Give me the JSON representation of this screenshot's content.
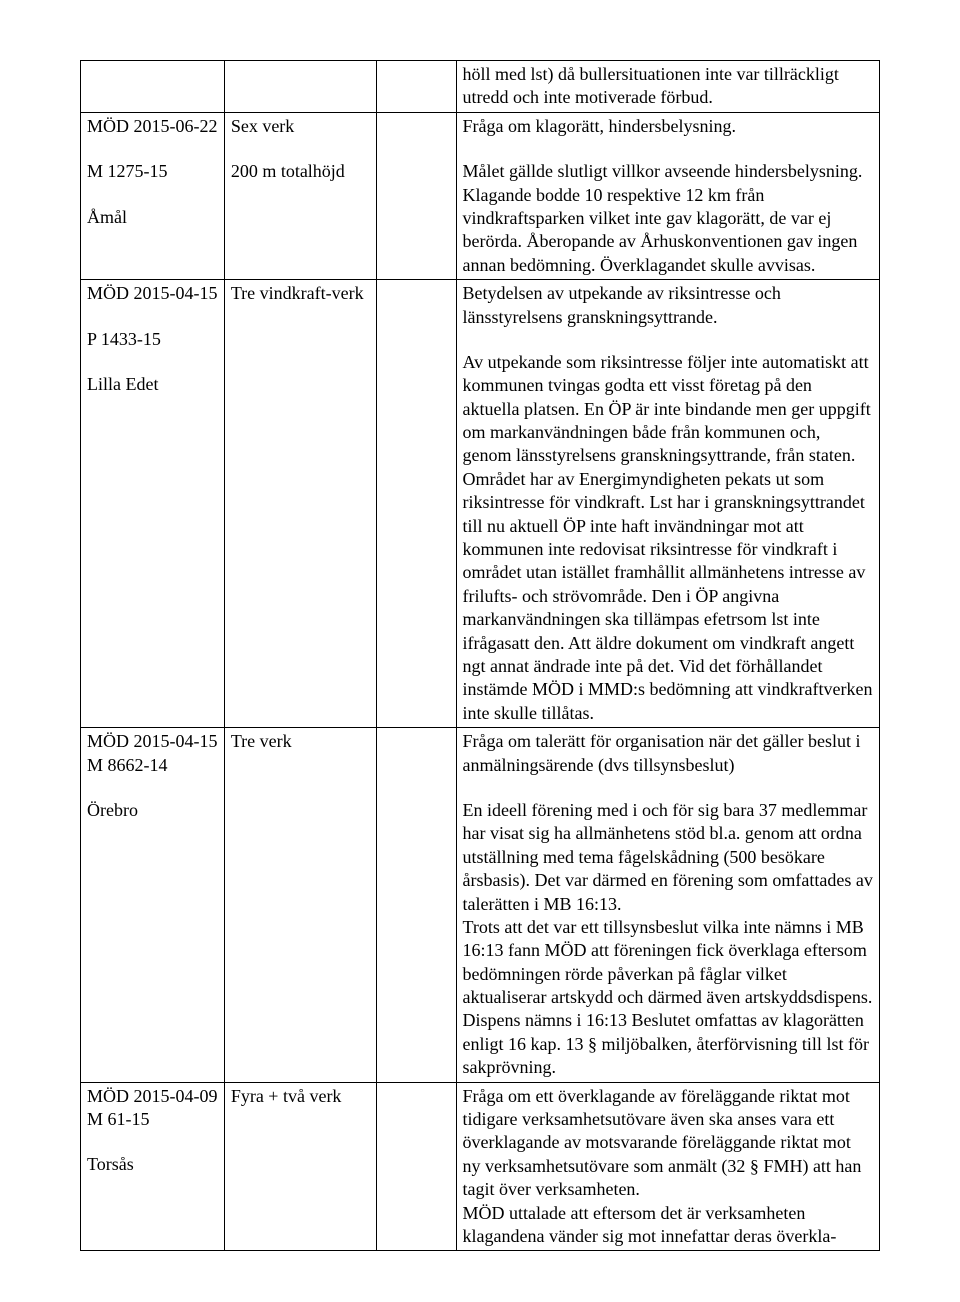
{
  "rows": [
    {
      "c1": [],
      "c2": [],
      "c3": [],
      "c4": [
        "höll med lst) då bullersituationen inte var tillräckligt utredd och inte motiverade förbud."
      ]
    },
    {
      "c1": [
        "MÖD 2015-06-22",
        "",
        "M 1275-15",
        "",
        "Åmål"
      ],
      "c2": [
        "Sex verk",
        "",
        "200 m totalhöjd"
      ],
      "c3": [],
      "c4": [
        "Fråga om klagorätt, hindersbelysning.",
        "",
        "Målet gällde slutligt villkor avseende hindersbelysning. Klagande bodde 10 respektive 12 km från vindkraftsparken vilket inte gav klagorätt, de var ej berörda. Åberopande av Århuskonventionen gav ingen annan bedömning. Överklagandet skulle avvisas."
      ]
    },
    {
      "c1": [
        "MÖD 2015-04-15",
        "",
        "P 1433-15",
        "",
        "Lilla Edet"
      ],
      "c2": [
        "Tre vindkraft-verk"
      ],
      "c3": [],
      "c4": [
        "Betydelsen av utpekande av riksintresse och länsstyrelsens granskningsyttrande.",
        "",
        "Av utpekande som riksintresse följer inte automatiskt att kommunen tvingas godta ett visst företag på den aktuella platsen. En ÖP är inte bindande men ger uppgift om markanvändningen både från kommunen och, genom länsstyrelsens granskningsyttrande, från staten. Området har av Energimyndigheten pekats ut som riksintresse för vindkraft. Lst har i granskningsyttrandet till nu aktuell ÖP inte haft invändningar mot att kommunen inte redovisat riksintresse för vindkraft i området utan istället framhållit allmänhetens intresse av frilufts- och strövområde. Den i ÖP angivna markanvändningen ska tillämpas efetrsom lst inte ifrågasatt den. Att äldre dokument om vindkraft angett ngt annat ändrade inte på det. Vid det förhållandet instämde MÖD i MMD:s bedömning att vindkraftverken inte skulle tillåtas."
      ]
    },
    {
      "c1": [
        "MÖD 2015-04-15",
        "M 8662-14",
        "",
        "Örebro"
      ],
      "c2": [
        "Tre verk"
      ],
      "c3": [],
      "c4": [
        "Fråga om talerätt för organisation när det gäller beslut i anmälningsärende (dvs tillsynsbeslut)",
        "",
        "En ideell förening med  i och för sig bara 37 medlemmar har visat sig ha allmänhetens stöd bl.a. genom att ordna utställning med tema fågelskådning (500 besökare årsbasis). Det var därmed en förening som omfattades av talerätten i MB 16:13.",
        "Trots att det var ett tillsynsbeslut vilka inte nämns i MB 16:13 fann MÖD att föreningen fick överklaga eftersom bedömningen rörde påverkan på fåglar vilket aktualiserar artskydd och därmed även artskyddsdispens. Dispens nämns i 16:13 Beslutet omfattas av klagorätten enligt 16 kap. 13 § miljöbalken, återförvisning till lst för sakprövning."
      ]
    },
    {
      "c1": [
        "MÖD 2015-04-09",
        "M 61-15",
        "",
        "Torsås"
      ],
      "c2": [
        "Fyra + två verk"
      ],
      "c3": [],
      "c4": [
        "Fråga om ett överklagande av föreläggande riktat mot tidigare verksamhetsutövare även ska anses vara ett överklagande av motsvarande föreläggande riktat mot ny verksamhetsutövare som anmält (32 § FMH) att han tagit över verksamheten.",
        "MÖD uttalade att eftersom det är verksamheten klagandena vänder sig mot innefattar deras överkla-"
      ]
    }
  ]
}
